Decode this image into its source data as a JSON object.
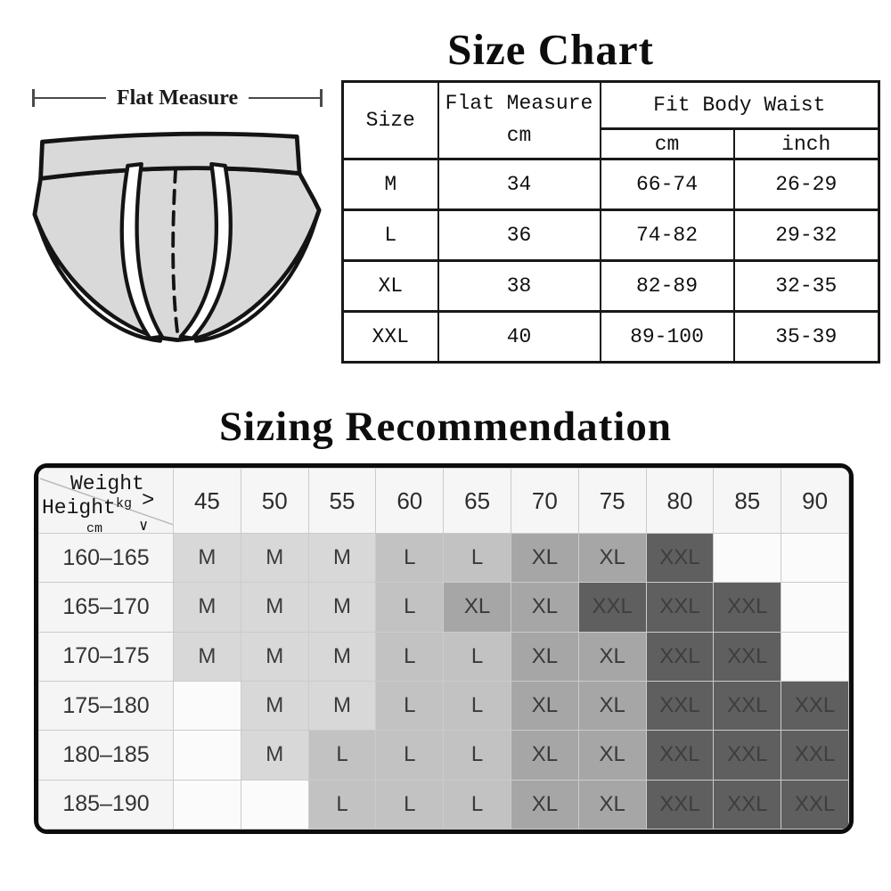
{
  "size_chart": {
    "title": "Size Chart",
    "figure": {
      "icon": "briefs-outline-diagram",
      "label": "Flat Measure",
      "briefs_fill": "#d9d9d9",
      "outline_color": "#141414"
    },
    "columns": {
      "size": "Size",
      "flat_measure_line1": "Flat Measure",
      "flat_measure_unit": "cm",
      "fit_body_waist": "Fit Body Waist",
      "waist_cm": "cm",
      "waist_inch": "inch"
    },
    "rows": [
      {
        "size": "M",
        "flat_measure_cm": "34",
        "waist_cm": "66-74",
        "waist_inch": "26-29"
      },
      {
        "size": "L",
        "flat_measure_cm": "36",
        "waist_cm": "74-82",
        "waist_inch": "29-32"
      },
      {
        "size": "XL",
        "flat_measure_cm": "38",
        "waist_cm": "82-89",
        "waist_inch": "32-35"
      },
      {
        "size": "XXL",
        "flat_measure_cm": "40",
        "waist_cm": "89-100",
        "waist_inch": "35-39"
      }
    ]
  },
  "sizing_recommendation": {
    "title": "Sizing Recommendation",
    "corner": {
      "weight_label": "Weight",
      "weight_unit": "kg",
      "weight_arrow": ">",
      "height_label": "Height",
      "height_unit": "cm",
      "height_arrow": "∨"
    },
    "weight_columns": [
      "45",
      "50",
      "55",
      "60",
      "65",
      "70",
      "75",
      "80",
      "85",
      "90"
    ],
    "rows": [
      {
        "height": "160–165",
        "sizes": [
          "M",
          "M",
          "M",
          "L",
          "L",
          "XL",
          "XL",
          "XXL",
          "",
          ""
        ]
      },
      {
        "height": "165–170",
        "sizes": [
          "M",
          "M",
          "M",
          "L",
          "XL",
          "XL",
          "XXL",
          "XXL",
          "XXL",
          ""
        ]
      },
      {
        "height": "170–175",
        "sizes": [
          "M",
          "M",
          "M",
          "L",
          "L",
          "XL",
          "XL",
          "XXL",
          "XXL",
          ""
        ]
      },
      {
        "height": "175–180",
        "sizes": [
          "",
          "M",
          "M",
          "L",
          "L",
          "XL",
          "XL",
          "XXL",
          "XXL",
          "XXL"
        ]
      },
      {
        "height": "180–185",
        "sizes": [
          "",
          "M",
          "L",
          "L",
          "L",
          "XL",
          "XL",
          "XXL",
          "XXL",
          "XXL"
        ]
      },
      {
        "height": "185–190",
        "sizes": [
          "",
          "",
          "L",
          "L",
          "L",
          "XL",
          "XL",
          "XXL",
          "XXL",
          "XXL"
        ]
      }
    ],
    "size_cell_colors": {
      "M": "#d8d8d8",
      "L": "#c2c2c2",
      "XL": "#a6a6a6",
      "XXL": "#5f5f5f",
      "empty": "#fbfbfb"
    },
    "cell_text_color": "#3a3a3a",
    "xxl_text_color": "#3e3e3e"
  }
}
